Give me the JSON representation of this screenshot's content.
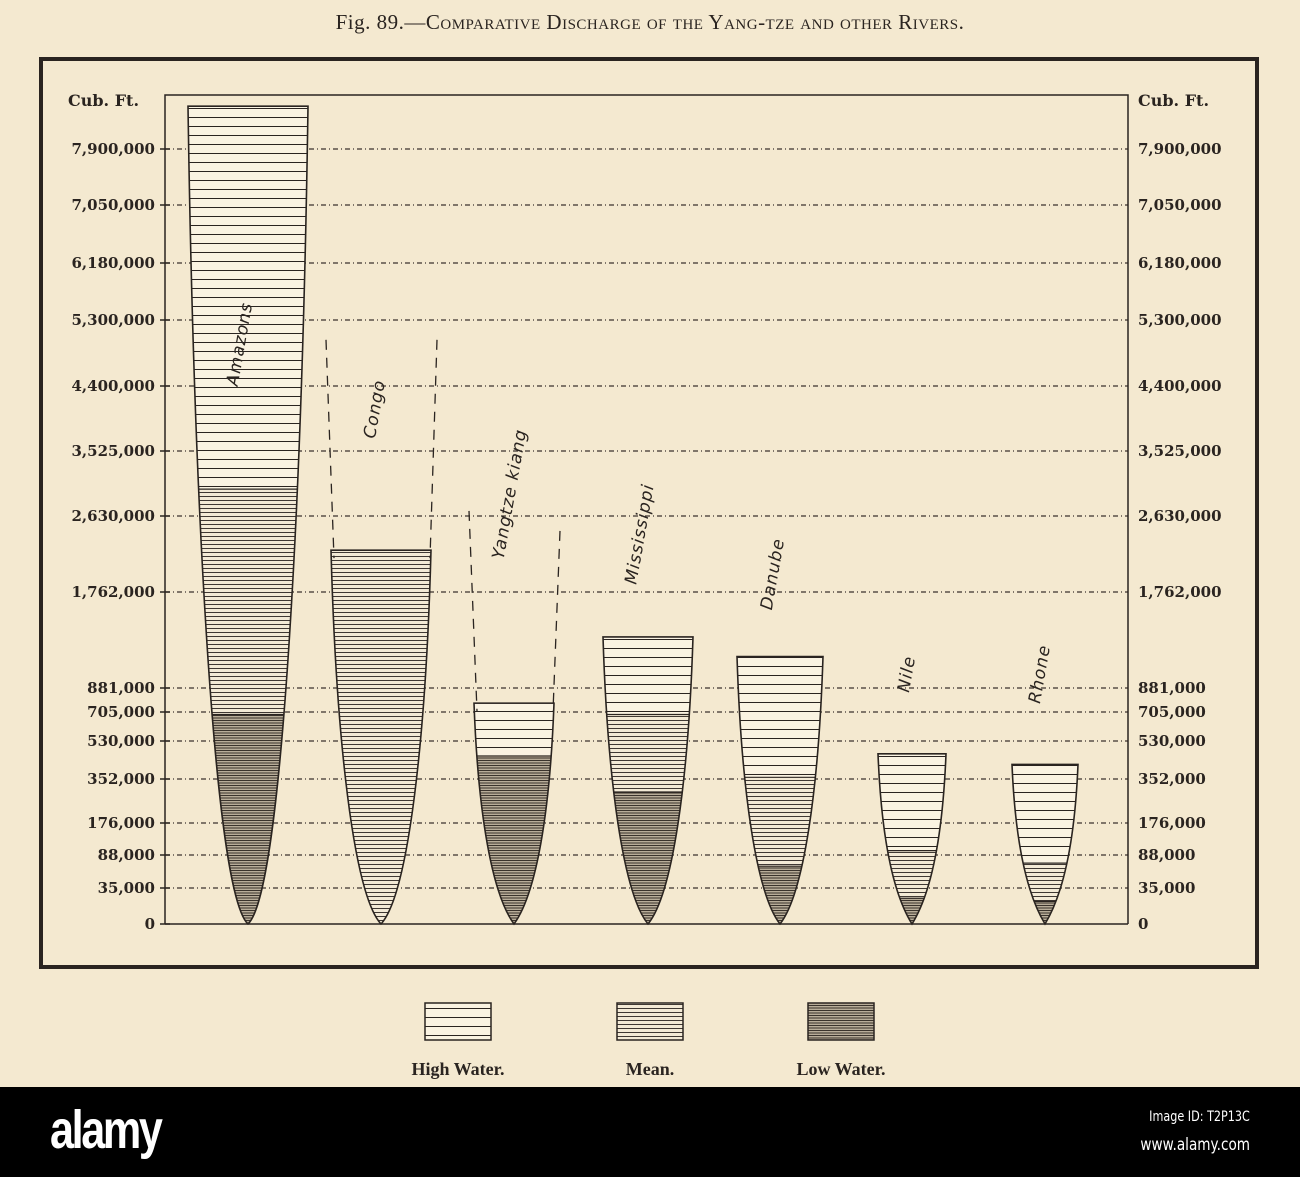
{
  "title": {
    "fig": "Fig. 89.—",
    "text": "Comparative Discharge of the Yang-tze and other Rivers."
  },
  "chart_data": {
    "type": "bar",
    "title": "Fig. 89.—Comparative Discharge of the Yang-tze and other Rivers.",
    "ylabel": "Cub. Ft.",
    "ylabel_right": "Cub. Ft.",
    "xlabel": "",
    "y_scale": "non-linear (ticks unevenly spaced)",
    "yticks": [
      7900000,
      7050000,
      6180000,
      5300000,
      4400000,
      3525000,
      2630000,
      1762000,
      881000,
      705000,
      530000,
      352000,
      176000,
      88000,
      35000,
      0
    ],
    "ytick_labels": [
      "7,900,000",
      "7,050,000",
      "6,180,000",
      "5,300,000",
      "4,400,000",
      "3,525,000",
      "2,630,000",
      "1,762,000",
      "881,000",
      "705,000",
      "530,000",
      "352,000",
      "176,000",
      "88,000",
      "35,000",
      "0"
    ],
    "ylim": [
      0,
      8550000
    ],
    "grid": "horizontal dotted",
    "categories": [
      "Amazons",
      "Congo",
      "Yangtze kiang",
      "Mississippi",
      "Danube",
      "Nile",
      "Rhone"
    ],
    "series": [
      {
        "name": "High Water.",
        "pattern": "wide",
        "values": [
          8550000,
          null,
          770000,
          1350000,
          1170000,
          470000,
          420000
        ]
      },
      {
        "name": "Mean.",
        "pattern": "dense",
        "values": [
          3000000,
          2240000,
          null,
          690000,
          360000,
          100000,
          75000
        ]
      },
      {
        "name": "Low Water.",
        "pattern": "dark",
        "values": [
          690000,
          null,
          460000,
          300000,
          70000,
          25000,
          22000
        ]
      },
      {
        "name": "High water (dashed outline)",
        "pattern": "dashed",
        "values": [
          null,
          5030000,
          2700000,
          null,
          null,
          null,
          null
        ]
      }
    ],
    "legend": [
      "High Water.",
      "Mean.",
      "Low Water."
    ],
    "legend_position": "bottom"
  },
  "watermark": "alamy",
  "footer": {
    "logo": "alamy",
    "image_id": "Image ID: T2P13C",
    "url": "www.alamy.com"
  }
}
